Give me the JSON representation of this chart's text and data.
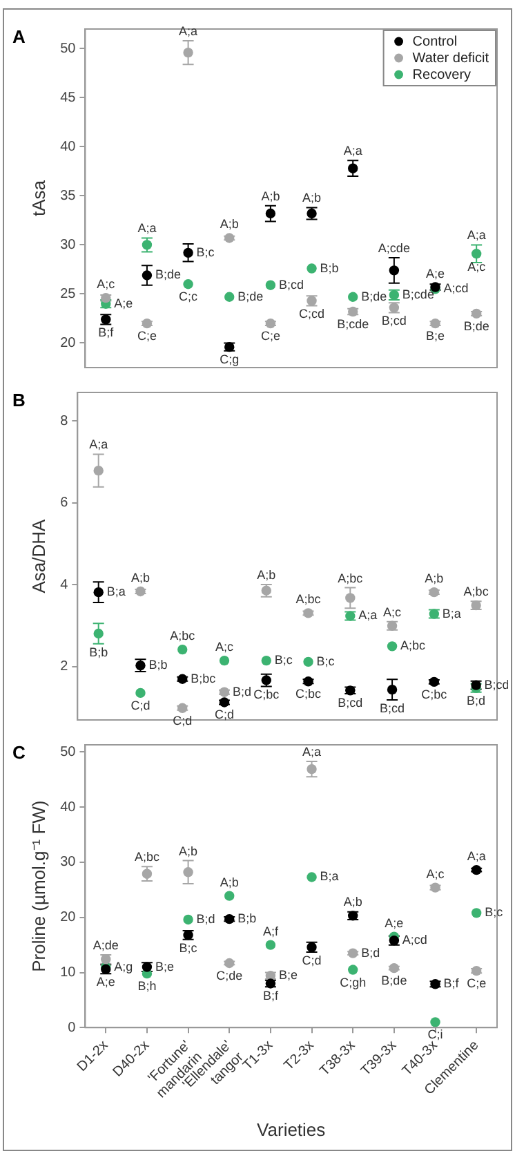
{
  "chart_data": [
    {
      "type": "scatter",
      "ylabel": "tAsa",
      "categories": [
        "D1-2x",
        "D40-2x",
        "'Fortune' mandarin",
        "'Ellendale' tangor",
        "T1-3x",
        "T2-3x",
        "T38-3x",
        "T39-3x",
        "T40-3x",
        "Clementine"
      ],
      "ylim": [
        17.5,
        52
      ],
      "yticks": [
        20,
        25,
        30,
        35,
        40,
        45,
        50
      ],
      "marker": "circle",
      "legend": "top right",
      "tick_labels": "y",
      "annotations": [
        "A",
        {
          "text": "A;c",
          "x": "Clementine",
          "y": 27.7
        }
      ],
      "series": [
        {
          "name": "Control",
          "color": "#000000",
          "values": [
            22.4,
            26.9,
            29.2,
            19.6,
            33.2,
            33.2,
            37.8,
            27.4,
            25.7,
            null
          ],
          "errors": [
            0.5,
            1.0,
            0.9,
            0.4,
            0.8,
            0.6,
            0.8,
            1.3,
            0.3,
            null
          ],
          "value_labels": [
            "B;f",
            "B;de",
            "B;c",
            "C;g",
            "A;b",
            "A;b",
            "A;a",
            "A;cde",
            "A;e",
            null
          ]
        },
        {
          "name": "Water deficit",
          "color": "#a6a6a6",
          "values": [
            24.6,
            22.0,
            49.6,
            30.7,
            22.0,
            24.3,
            23.2,
            23.6,
            22.0,
            23.0
          ],
          "errors": [
            0.3,
            0.2,
            1.2,
            0.2,
            0.2,
            0.5,
            0.3,
            0.5,
            0.2,
            0.2
          ],
          "value_labels": [
            "A;c",
            "C;e",
            "A;a",
            "A;b",
            "C;e",
            "C;cd",
            "B;cde",
            "B;cd",
            "B;e",
            "B;de"
          ]
        },
        {
          "name": "Recovery",
          "color": "#3cb371",
          "values": [
            24.0,
            30.0,
            26.0,
            24.7,
            25.9,
            27.6,
            24.7,
            24.9,
            25.5,
            29.1
          ],
          "errors": [
            0.4,
            0.7,
            null,
            null,
            null,
            null,
            null,
            0.5,
            null,
            0.9
          ],
          "value_labels": [
            "A;e",
            "A;a",
            "C;c",
            "B;de",
            "B;cd",
            "B;b",
            "B;de",
            "B;cde",
            "A;cd",
            "A;a"
          ]
        }
      ]
    },
    {
      "type": "scatter",
      "ylabel": "Asa/DHA",
      "categories": [
        "D1-2x",
        "D40-2x",
        "'Fortune' mandarin",
        "'Ellendale' tangor",
        "T1-3x",
        "T2-3x",
        "T38-3x",
        "T39-3x",
        "T40-3x",
        "Clementine"
      ],
      "ylim": [
        0.7,
        8.7
      ],
      "yticks": [
        2,
        4,
        6,
        8
      ],
      "marker": "circle",
      "tick_labels": "y",
      "annotations": [
        "B"
      ],
      "series": [
        {
          "color": "#000000",
          "values": [
            3.82,
            2.03,
            1.7,
            1.13,
            1.67,
            1.64,
            1.42,
            1.44,
            1.63,
            1.55
          ],
          "errors": [
            0.25,
            0.15,
            0.05,
            0.05,
            0.15,
            0.05,
            0.08,
            0.25,
            0.05,
            0.1
          ],
          "value_labels": [
            "B;a",
            "B;b",
            "B;bc",
            "C;d",
            "C;bc",
            "C;bc",
            "B;cd",
            "B;cd",
            "C;bc",
            "B;cd"
          ]
        },
        {
          "color": "#a6a6a6",
          "values": [
            6.79,
            3.84,
            0.99,
            1.38,
            3.86,
            3.31,
            3.68,
            3.0,
            3.82,
            3.5
          ],
          "errors": [
            0.4,
            0.05,
            0.05,
            0.05,
            0.15,
            0.05,
            0.25,
            0.1,
            0.05,
            0.1
          ],
          "value_labels": [
            "A;a",
            "A;b",
            "C;d",
            "B;d",
            "A;b",
            "A;bc",
            "A;bc",
            "A;c",
            "A;b",
            "A;bc"
          ]
        },
        {
          "color": "#3cb371",
          "values": [
            2.81,
            1.36,
            2.42,
            2.15,
            2.15,
            2.12,
            3.24,
            2.5,
            3.29,
            1.48
          ],
          "errors": [
            0.25,
            null,
            null,
            null,
            null,
            null,
            0.1,
            null,
            0.1,
            0.1
          ],
          "value_labels": [
            "B;b",
            "C;d",
            "A;bc",
            "A;c",
            "B;c",
            "B;c",
            "A;a",
            "A;bc",
            "B;a",
            "B;d"
          ]
        }
      ]
    },
    {
      "type": "scatter",
      "ylabel": "Proline (µmol.g⁻¹ FW)",
      "xlabel": "Varieties",
      "categories": [
        "D1-2x",
        "D40-2x",
        "'Fortune' mandarin",
        "'Ellendale' tangor",
        "T1-3x",
        "T2-3x",
        "T38-3x",
        "T39-3x",
        "T40-3x",
        "Clementine"
      ],
      "ylim": [
        0,
        51.3
      ],
      "yticks": [
        0,
        10,
        20,
        30,
        40,
        50
      ],
      "marker": "circle",
      "annotations": [
        "C"
      ],
      "series": [
        {
          "color": "#000000",
          "values": [
            10.6,
            11.0,
            16.8,
            19.7,
            8.0,
            14.6,
            20.3,
            15.8,
            7.9,
            28.6
          ],
          "errors": [
            0.8,
            0.8,
            0.8,
            0.4,
            0.6,
            0.9,
            0.7,
            0.8,
            0.5,
            0.3
          ],
          "value_labels": [
            "A;e",
            "B;e",
            "B;c",
            "B;b",
            "B;f",
            "C;d",
            "A;b",
            "A;cd",
            "B;f",
            "A;a"
          ]
        },
        {
          "color": "#a6a6a6",
          "values": [
            12.4,
            27.9,
            28.2,
            11.7,
            9.4,
            46.9,
            13.5,
            10.8,
            25.4,
            10.3
          ],
          "errors": [
            0.8,
            1.3,
            2.1,
            0.3,
            0.6,
            1.4,
            0.3,
            0.3,
            0.4,
            0.4
          ],
          "value_labels": [
            "A;de",
            "A;bc",
            "A;b",
            "C;de",
            "B;e",
            "A;a",
            "B;d",
            "B;de",
            "A;c",
            "C;e"
          ]
        },
        {
          "color": "#3cb371",
          "values": [
            11.0,
            9.8,
            19.6,
            23.9,
            15.0,
            27.3,
            10.5,
            16.5,
            1.0,
            20.8
          ],
          "value_labels": [
            "A;g",
            "B;h",
            "B;d",
            "A;b",
            "A;f",
            "B;a",
            "C;gh",
            "A;e",
            "C;i",
            "B;c"
          ]
        }
      ]
    }
  ]
}
